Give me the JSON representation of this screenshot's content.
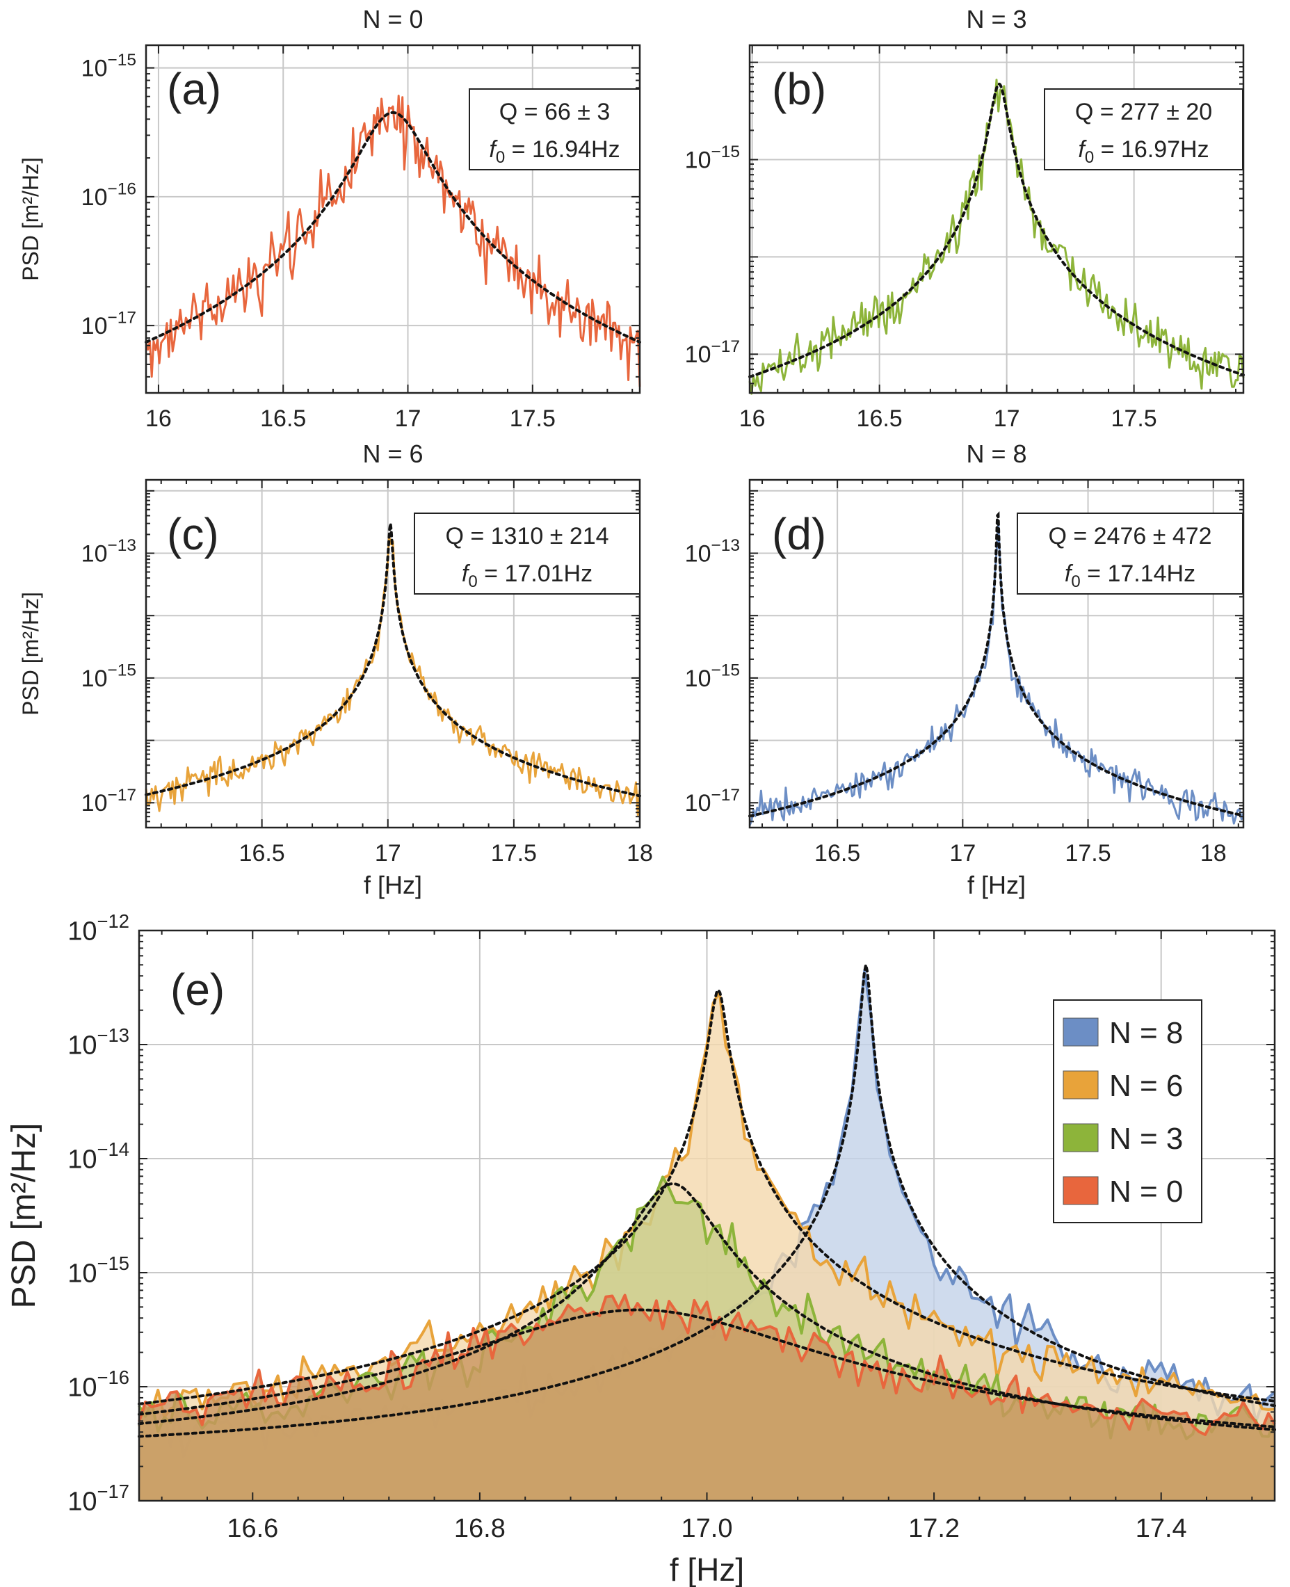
{
  "chart_data": [
    {
      "id": "a",
      "type": "line",
      "panel_label": "(a)",
      "title": "N = 0",
      "xlabel": "",
      "ylabel": "PSD [m²/Hz]",
      "xlim": [
        15.95,
        17.93
      ],
      "ylim": [
        3e-18,
        1.5e-15
      ],
      "yscale": "log",
      "xticks": [
        {
          "value": 16,
          "label": "16"
        },
        {
          "value": 16.5,
          "label": "16.5"
        },
        {
          "value": 17,
          "label": "17"
        },
        {
          "value": 17.5,
          "label": "17.5"
        }
      ],
      "yticks": [
        {
          "value": 1e-17,
          "label": "10",
          "exp": "−17"
        },
        {
          "value": 1e-16,
          "label": "10",
          "exp": "−16"
        },
        {
          "value": 1e-15,
          "label": "10",
          "exp": "−15"
        }
      ],
      "color": "#E8663D",
      "fit": {
        "f0": 16.94,
        "Q": 66,
        "peak": 4.5e-16
      },
      "q_text": "Q = 66 ± 3",
      "f_var": "f",
      "f_sub": "0",
      "f_text": " = 16.94Hz",
      "grid": true
    },
    {
      "id": "b",
      "type": "line",
      "panel_label": "(b)",
      "title": "N = 3",
      "xlabel": "",
      "ylabel": "",
      "xlim": [
        15.99,
        17.93
      ],
      "ylim": [
        4e-18,
        1.5e-14
      ],
      "yscale": "log",
      "xticks": [
        {
          "value": 16,
          "label": "16"
        },
        {
          "value": 16.5,
          "label": "16.5"
        },
        {
          "value": 17,
          "label": "17"
        },
        {
          "value": 17.5,
          "label": "17.5"
        }
      ],
      "yticks": [
        {
          "value": 1e-17,
          "label": "10",
          "exp": "−17"
        },
        {
          "value": 1e-15,
          "label": "10",
          "exp": "−15"
        }
      ],
      "color": "#8DB43A",
      "fit": {
        "f0": 16.97,
        "Q": 277,
        "peak": 6e-15
      },
      "q_text": "Q = 277 ± 20",
      "f_var": "f",
      "f_sub": "0",
      "f_text": " = 16.97Hz",
      "grid": true
    },
    {
      "id": "c",
      "type": "line",
      "panel_label": "(c)",
      "title": "N = 6",
      "xlabel": "f [Hz]",
      "ylabel": "PSD [m²/Hz]",
      "xlim": [
        16.04,
        18.0
      ],
      "ylim": [
        4e-18,
        1.5e-12
      ],
      "yscale": "log",
      "xticks": [
        {
          "value": 16.5,
          "label": "16.5"
        },
        {
          "value": 17,
          "label": "17"
        },
        {
          "value": 17.5,
          "label": "17.5"
        },
        {
          "value": 18,
          "label": "18"
        }
      ],
      "yticks": [
        {
          "value": 1e-17,
          "label": "10",
          "exp": "−17"
        },
        {
          "value": 1e-15,
          "label": "10",
          "exp": "−15"
        },
        {
          "value": 1e-13,
          "label": "10",
          "exp": "−13"
        }
      ],
      "color": "#E8A33A",
      "fit": {
        "f0": 17.01,
        "Q": 1310,
        "peak": 3e-13
      },
      "q_text": "Q = 1310 ± 214",
      "f_var": "f",
      "f_sub": "0",
      "f_text": " = 17.01Hz",
      "grid": true
    },
    {
      "id": "d",
      "type": "line",
      "panel_label": "(d)",
      "title": "N = 8",
      "xlabel": "f [Hz]",
      "ylabel": "",
      "xlim": [
        16.15,
        18.12
      ],
      "ylim": [
        4e-18,
        1.5e-12
      ],
      "yscale": "log",
      "xticks": [
        {
          "value": 16.5,
          "label": "16.5"
        },
        {
          "value": 17,
          "label": "17"
        },
        {
          "value": 17.5,
          "label": "17.5"
        },
        {
          "value": 18,
          "label": "18"
        }
      ],
      "yticks": [
        {
          "value": 1e-17,
          "label": "10",
          "exp": "−17"
        },
        {
          "value": 1e-15,
          "label": "10",
          "exp": "−15"
        },
        {
          "value": 1e-13,
          "label": "10",
          "exp": "−13"
        }
      ],
      "color": "#6C8EC5",
      "fit": {
        "f0": 17.14,
        "Q": 2476,
        "peak": 5e-13
      },
      "q_text": "Q = 2476 ± 472",
      "f_var": "f",
      "f_sub": "0",
      "f_text": " = 17.14Hz",
      "grid": true
    },
    {
      "id": "e",
      "type": "area",
      "panel_label": "(e)",
      "title": "",
      "xlabel": "f [Hz]",
      "ylabel": "PSD [m²/Hz]",
      "xlim": [
        16.5,
        17.5
      ],
      "ylim": [
        1e-17,
        1e-12
      ],
      "yscale": "log",
      "xticks": [
        {
          "value": 16.6,
          "label": "16.6"
        },
        {
          "value": 16.8,
          "label": "16.8"
        },
        {
          "value": 17.0,
          "label": "17.0"
        },
        {
          "value": 17.2,
          "label": "17.2"
        },
        {
          "value": 17.4,
          "label": "17.4"
        }
      ],
      "yticks": [
        {
          "value": 1e-17,
          "label": "10",
          "exp": "−17"
        },
        {
          "value": 1e-16,
          "label": "10",
          "exp": "−16"
        },
        {
          "value": 1e-15,
          "label": "10",
          "exp": "−15"
        },
        {
          "value": 1e-14,
          "label": "10",
          "exp": "−14"
        },
        {
          "value": 1e-13,
          "label": "10",
          "exp": "−13"
        },
        {
          "value": 1e-12,
          "label": "10",
          "exp": "−12"
        }
      ],
      "legend_position": "right",
      "grid": true,
      "series": [
        {
          "name": "N = 8",
          "color": "#6C8EC5",
          "fill": "#c3d2e8",
          "f0": 17.14,
          "Q": 2476,
          "peak": 5e-13
        },
        {
          "name": "N = 6",
          "color": "#E8A33A",
          "fill": "#f4d8ac",
          "f0": 17.01,
          "Q": 1310,
          "peak": 3e-13
        },
        {
          "name": "N = 3",
          "color": "#8DB43A",
          "fill": "#c9cd8a",
          "f0": 16.97,
          "Q": 277,
          "peak": 6e-15
        },
        {
          "name": "N = 0",
          "color": "#E8663D",
          "fill": "#c9955f",
          "f0": 16.94,
          "Q": 66,
          "peak": 4.5e-16
        }
      ]
    }
  ]
}
